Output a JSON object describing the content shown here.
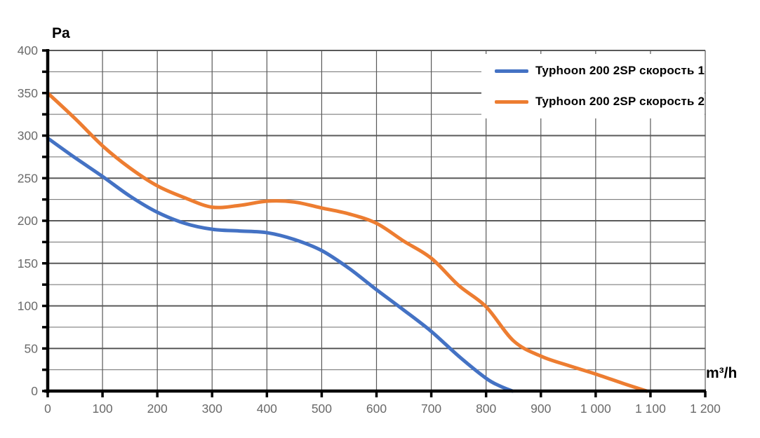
{
  "chart_data": {
    "type": "line",
    "title": "",
    "ylabel": "Pa",
    "xlabel": "m³/h",
    "xlim": [
      0,
      1200
    ],
    "ylim": [
      0,
      400
    ],
    "x_tick_step": 100,
    "x_tick_labels": [
      "0",
      "100",
      "200",
      "300",
      "400",
      "500",
      "600",
      "700",
      "800",
      "900",
      "1 000",
      "1 100",
      "1 200"
    ],
    "y_tick_step": 50,
    "y_tick_labels": [
      "0",
      "50",
      "100",
      "150",
      "200",
      "250",
      "300",
      "350",
      "400"
    ],
    "y_minor_step": 25,
    "grid": "major-and-minor-horizontal, major-vertical",
    "legend_position": "top-right-inside",
    "series": [
      {
        "name": "Typhoon 200 2SP скорость 1",
        "color": "#4472C4",
        "points": [
          [
            0,
            297
          ],
          [
            50,
            274
          ],
          [
            100,
            252
          ],
          [
            150,
            229
          ],
          [
            200,
            210
          ],
          [
            250,
            197
          ],
          [
            300,
            190
          ],
          [
            350,
            188
          ],
          [
            400,
            186
          ],
          [
            450,
            178
          ],
          [
            500,
            165
          ],
          [
            550,
            144
          ],
          [
            600,
            119
          ],
          [
            650,
            95
          ],
          [
            700,
            70
          ],
          [
            750,
            41
          ],
          [
            800,
            15
          ],
          [
            825,
            6
          ],
          [
            848,
            0
          ]
        ]
      },
      {
        "name": "Typhoon 200 2SP скорость 2",
        "color": "#ED7D31",
        "points": [
          [
            0,
            350
          ],
          [
            50,
            320
          ],
          [
            100,
            288
          ],
          [
            150,
            262
          ],
          [
            200,
            241
          ],
          [
            250,
            227
          ],
          [
            300,
            216
          ],
          [
            350,
            218
          ],
          [
            400,
            223
          ],
          [
            450,
            222
          ],
          [
            500,
            215
          ],
          [
            550,
            208
          ],
          [
            600,
            197
          ],
          [
            650,
            176
          ],
          [
            700,
            156
          ],
          [
            750,
            124
          ],
          [
            800,
            99
          ],
          [
            850,
            59
          ],
          [
            900,
            41
          ],
          [
            950,
            30
          ],
          [
            1000,
            20
          ],
          [
            1050,
            9
          ],
          [
            1093,
            0
          ]
        ]
      }
    ],
    "colors": {
      "axis": "#000000",
      "grid_major": "#595959",
      "grid_minor": "#6e6e6e",
      "tick_label": "#6a6a6a",
      "background": "#ffffff"
    }
  }
}
